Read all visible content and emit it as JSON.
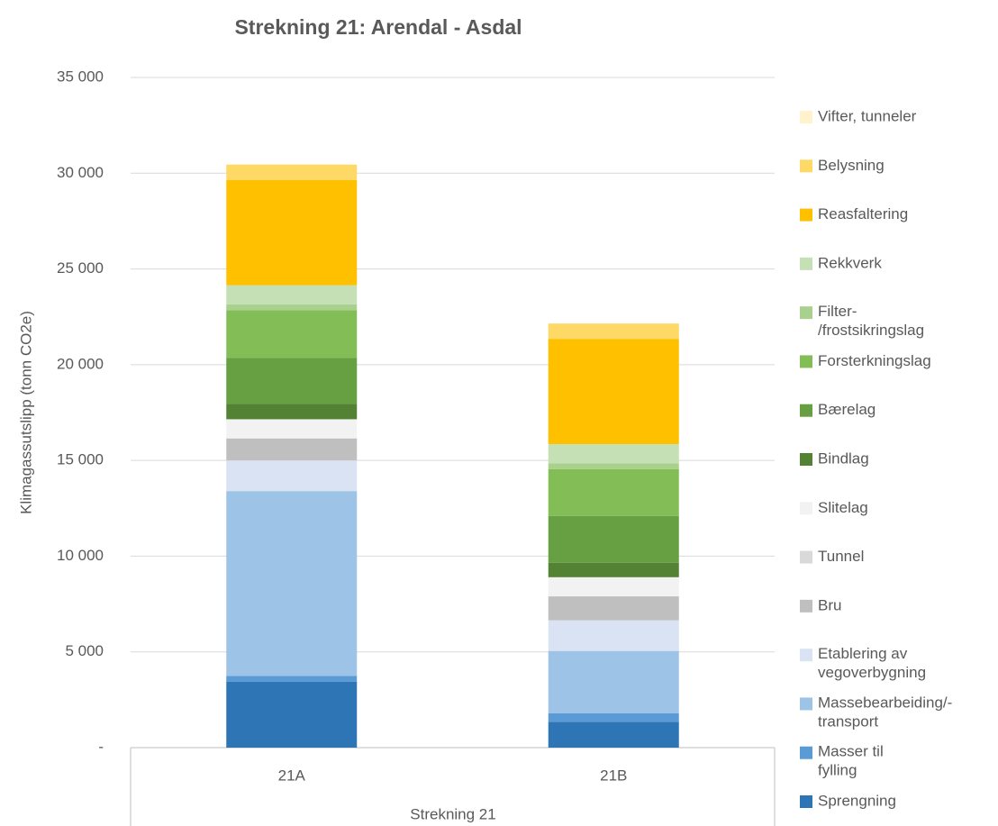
{
  "chart_data": {
    "type": "stacked_bar",
    "title": "Strekning 21: Arendal - Asdal",
    "ylabel": "Klimagassutslipp (tonn CO2e)",
    "xlabel": "Strekning 21",
    "categories": [
      "21A",
      "21B"
    ],
    "ylim": [
      0,
      35000
    ],
    "yticks": [
      {
        "value": 0,
        "label": "-"
      },
      {
        "value": 5000,
        "label": "5 000"
      },
      {
        "value": 10000,
        "label": "10 000"
      },
      {
        "value": 15000,
        "label": "15 000"
      },
      {
        "value": 20000,
        "label": "20 000"
      },
      {
        "value": 25000,
        "label": "25 000"
      },
      {
        "value": 30000,
        "label": "30 000"
      },
      {
        "value": 35000,
        "label": "35 000"
      }
    ],
    "grid": true,
    "legend": "right",
    "series": [
      {
        "name": "Sprengning",
        "color": "#2e75b6",
        "values": [
          3450,
          1350
        ]
      },
      {
        "name": "Masser til fylling",
        "color": "#5b9bd5",
        "values": [
          300,
          450
        ]
      },
      {
        "name": "Massebearbeiding/-transport",
        "color": "#9dc3e6",
        "values": [
          9650,
          3250
        ]
      },
      {
        "name": "Etablering av vegoverbygning",
        "color": "#dae3f3",
        "values": [
          1600,
          1600
        ]
      },
      {
        "name": "Bru",
        "color": "#bfbfbf",
        "values": [
          1150,
          1250
        ]
      },
      {
        "name": "Tunnel",
        "color": "#d9d9d9",
        "values": [
          0,
          0
        ]
      },
      {
        "name": "Slitelag",
        "color": "#f2f2f2",
        "values": [
          1000,
          1000
        ]
      },
      {
        "name": "Bindlag",
        "color": "#548235",
        "values": [
          800,
          750
        ]
      },
      {
        "name": "Bærelag",
        "color": "#67a042",
        "values": [
          2400,
          2450
        ]
      },
      {
        "name": "Forsterkningslag",
        "color": "#82bd56",
        "values": [
          2500,
          2450
        ]
      },
      {
        "name": "Filter-/frostsikringslag",
        "color": "#a9d18e",
        "values": [
          300,
          300
        ]
      },
      {
        "name": "Rekkverk",
        "color": "#c5e0b4",
        "values": [
          1000,
          1000
        ]
      },
      {
        "name": "Reasfaltering",
        "color": "#ffc000",
        "values": [
          5500,
          5500
        ]
      },
      {
        "name": "Belysning",
        "color": "#ffd966",
        "values": [
          800,
          800
        ]
      },
      {
        "name": "Vifter, tunneler",
        "color": "#fff2cc",
        "values": [
          0,
          0
        ]
      }
    ]
  }
}
